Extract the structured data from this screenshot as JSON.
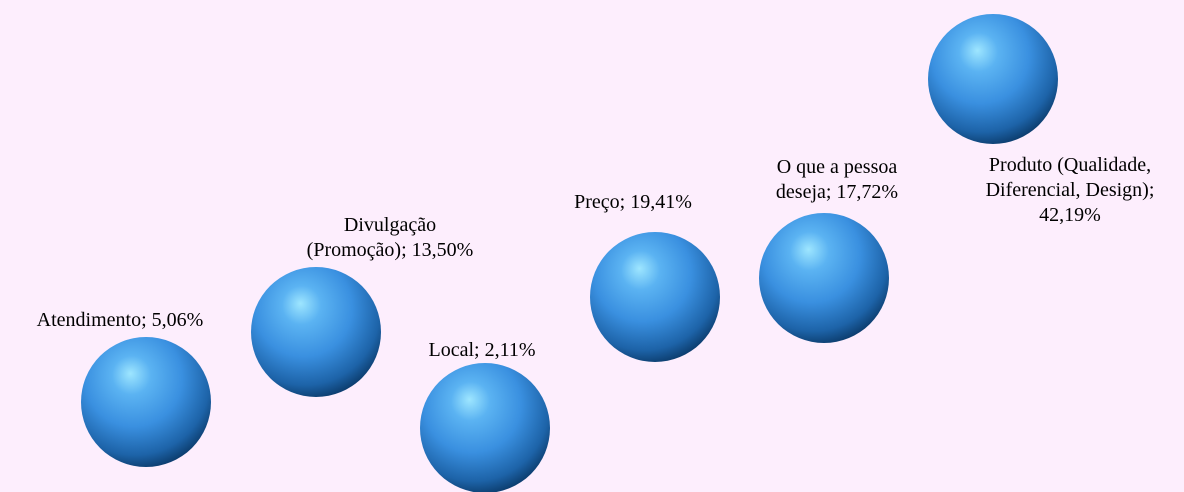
{
  "chart_data": {
    "type": "bubble",
    "title": "",
    "categories": [
      "Atendimento",
      "Divulgação (Promoção)",
      "Local",
      "Preço",
      "O que a pessoa deseja",
      "Produto (Qualidade, Diferencial, Design)"
    ],
    "values": [
      5.06,
      13.5,
      2.11,
      19.41,
      17.72,
      42.19
    ],
    "value_unit": "%",
    "data_labels": [
      [
        "Atendimento; 5,06%"
      ],
      [
        "Divulgação",
        "(Promoção); 13,50%"
      ],
      [
        "Local; 2,11%"
      ],
      [
        "Preço; 19,41%"
      ],
      [
        "O que a pessoa",
        "deseja; 17,72%"
      ],
      [
        "Produto (Qualidade,",
        "Diferencial, Design);",
        "42,19%"
      ]
    ],
    "colors": {
      "background": "#fdeefd",
      "marker_highlight": "#9ee6ff",
      "marker_mid": "#3a90e0",
      "marker_shadow": "#0c3d6e"
    },
    "legend": "none",
    "grid": false,
    "axes_visible": false
  }
}
